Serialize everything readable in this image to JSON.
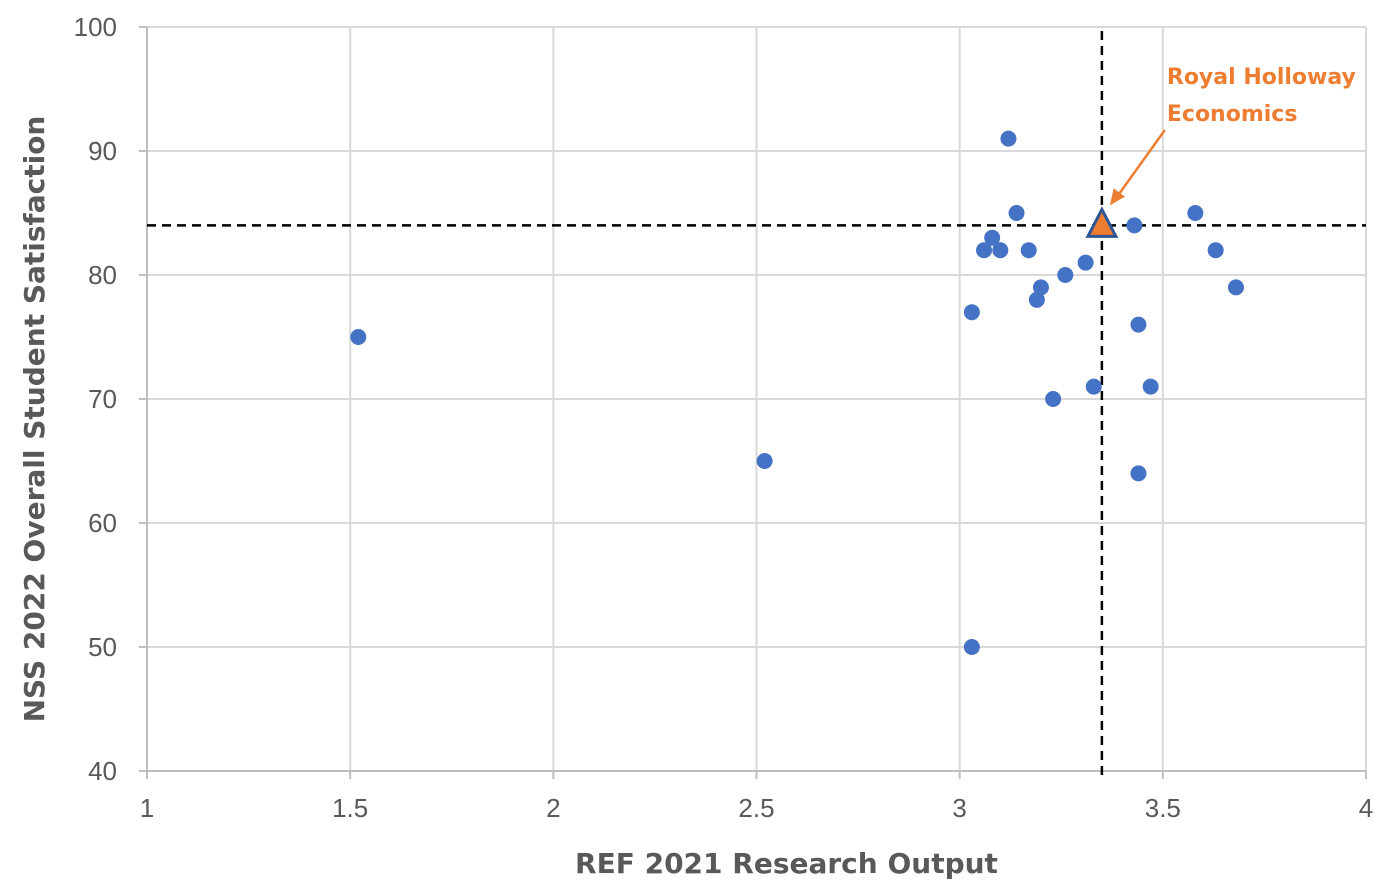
{
  "chart_data": {
    "type": "scatter",
    "xlabel": "REF 2021 Research Output",
    "ylabel": "NSS 2022 Overall Student Satisfaction",
    "xlim": [
      1,
      4
    ],
    "ylim": [
      40,
      100
    ],
    "x_ticks": [
      1,
      1.5,
      2,
      2.5,
      3,
      3.5,
      4
    ],
    "y_ticks": [
      40,
      50,
      60,
      70,
      80,
      90,
      100
    ],
    "x_tick_labels": [
      "1",
      "1.5",
      "2",
      "2.5",
      "3",
      "3.5",
      "4"
    ],
    "y_tick_labels": [
      "40",
      "50",
      "60",
      "70",
      "80",
      "90",
      "100"
    ],
    "grid": true,
    "marker_color": "#4472c4",
    "highlight_color": "#ed7d31",
    "reference_lines": {
      "x": 3.35,
      "y": 84
    },
    "series": [
      {
        "points": [
          {
            "x": 1.52,
            "y": 75
          },
          {
            "x": 2.52,
            "y": 65
          },
          {
            "x": 3.03,
            "y": 77
          },
          {
            "x": 3.03,
            "y": 50
          },
          {
            "x": 3.06,
            "y": 82
          },
          {
            "x": 3.08,
            "y": 83
          },
          {
            "x": 3.1,
            "y": 82
          },
          {
            "x": 3.12,
            "y": 91
          },
          {
            "x": 3.14,
            "y": 85
          },
          {
            "x": 3.17,
            "y": 82
          },
          {
            "x": 3.19,
            "y": 78
          },
          {
            "x": 3.2,
            "y": 79
          },
          {
            "x": 3.23,
            "y": 70
          },
          {
            "x": 3.26,
            "y": 80
          },
          {
            "x": 3.31,
            "y": 81
          },
          {
            "x": 3.33,
            "y": 71
          },
          {
            "x": 3.43,
            "y": 84
          },
          {
            "x": 3.44,
            "y": 76
          },
          {
            "x": 3.44,
            "y": 64
          },
          {
            "x": 3.47,
            "y": 71
          },
          {
            "x": 3.58,
            "y": 85
          },
          {
            "x": 3.63,
            "y": 82
          },
          {
            "x": 3.68,
            "y": 79
          }
        ]
      }
    ],
    "highlight": {
      "x": 3.35,
      "y": 84,
      "marker": "triangle",
      "label_lines": [
        "Royal Holloway",
        "Economics"
      ]
    }
  }
}
